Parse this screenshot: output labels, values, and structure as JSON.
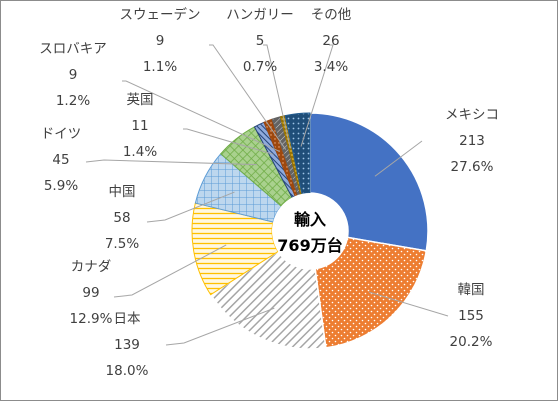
{
  "chart_data": {
    "type": "pie",
    "center_label": [
      "輸入",
      "769万台"
    ],
    "categories": [
      "メキシコ",
      "韓国",
      "日本",
      "カナダ",
      "中国",
      "ドイツ",
      "英国",
      "スロバキア",
      "スウェーデン",
      "ハンガリー",
      "その他"
    ],
    "values": [
      213,
      155,
      139,
      99,
      58,
      45,
      11,
      9,
      9,
      5,
      26
    ],
    "percents": [
      "27.6%",
      "20.2%",
      "18.0%",
      "12.9%",
      "7.5%",
      "5.9%",
      "1.4%",
      "1.2%",
      "1.1%",
      "0.7%",
      "3.4%"
    ],
    "colors": [
      "#4472c4",
      "#ed7d31",
      "#a5a5a5",
      "#ffc000",
      "#5b9bd5",
      "#70ad47",
      "#264478",
      "#9e480e",
      "#636363",
      "#997300",
      "#255e91"
    ],
    "donut": true,
    "legend": "none"
  }
}
